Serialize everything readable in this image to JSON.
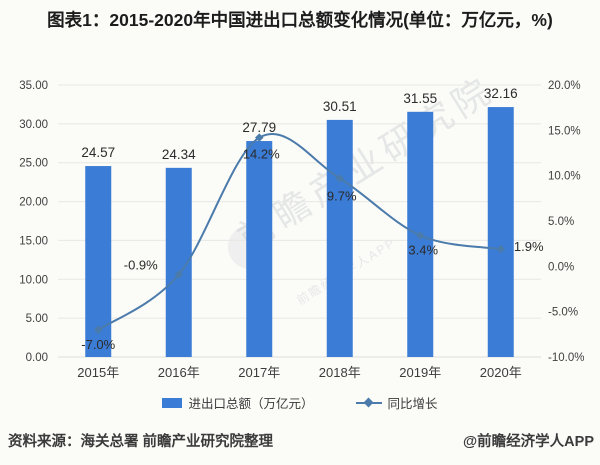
{
  "chart_data": {
    "type": "bar",
    "title": "图表1：2015-2020年中国进出口总额变化情况(单位：万亿元，%)",
    "categories": [
      "2015年",
      "2016年",
      "2017年",
      "2018年",
      "2019年",
      "2020年"
    ],
    "series": [
      {
        "name": "进出口总额（万亿元）",
        "type": "bar",
        "axis": "left",
        "color": "#3b7cd6",
        "values": [
          24.57,
          24.34,
          27.79,
          30.51,
          31.55,
          32.16
        ],
        "labels": [
          "24.57",
          "24.34",
          "27.79",
          "30.51",
          "31.55",
          "32.16"
        ]
      },
      {
        "name": "同比增长",
        "type": "line",
        "axis": "right",
        "color": "#4b7bab",
        "values": [
          -7.0,
          -0.9,
          14.2,
          9.7,
          3.4,
          1.9
        ],
        "labels": [
          "-7.0%",
          "-0.9%",
          "14.2%",
          "9.7%",
          "3.4%",
          "1.9%"
        ]
      }
    ],
    "left_axis": {
      "min": 0,
      "max": 35,
      "ticks": [
        "35.00",
        "30.00",
        "25.00",
        "20.00",
        "15.00",
        "10.00",
        "5.00",
        "0.00"
      ]
    },
    "right_axis": {
      "min": -10,
      "max": 20,
      "ticks": [
        "20.0%",
        "15.0%",
        "10.0%",
        "5.0%",
        "0.0%",
        "-5.0%",
        "-10.0%"
      ]
    },
    "grid": true,
    "legend_position": "bottom",
    "xlabel": "",
    "ylabel": ""
  },
  "watermark": {
    "brand": "前瞻产业研究院",
    "sub": "前瞻经济学人APP",
    "color": "#b9bec4"
  },
  "footer": {
    "source": "资料来源：海关总署 前瞻产业研究院整理",
    "handle": "@前瞻经济学人APP"
  }
}
